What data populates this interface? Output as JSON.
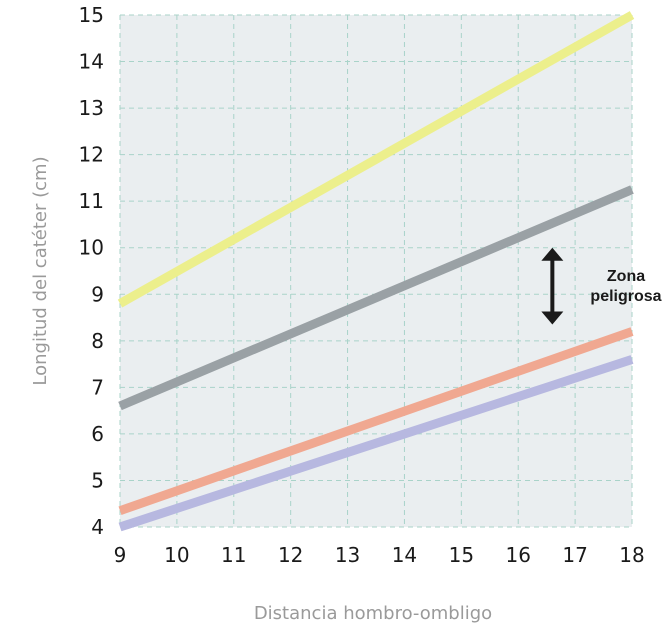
{
  "chart_data": {
    "type": "line",
    "xlabel": "Distancia hombro-ombligo",
    "ylabel": "Longitud del catéter (cm)",
    "xlim": [
      9,
      18
    ],
    "ylim": [
      4,
      15
    ],
    "xticks": [
      "9",
      "10",
      "11",
      "12",
      "13",
      "14",
      "15",
      "16",
      "17",
      "18"
    ],
    "yticks": [
      "4",
      "5",
      "6",
      "7",
      "8",
      "9",
      "10",
      "11",
      "12",
      "13",
      "14",
      "15"
    ],
    "grid": true,
    "series": [
      {
        "color": "#ecef8c",
        "x": [
          9,
          18
        ],
        "y": [
          8.8,
          15.0
        ]
      },
      {
        "color": "#9aa1a5",
        "x": [
          9,
          18
        ],
        "y": [
          6.6,
          11.25
        ]
      },
      {
        "color": "#f0a891",
        "x": [
          9,
          18
        ],
        "y": [
          4.35,
          8.2
        ]
      },
      {
        "color": "#b7b8e0",
        "x": [
          9,
          18
        ],
        "y": [
          4.0,
          7.6
        ]
      }
    ],
    "annotation": {
      "lines": [
        "Zona",
        "peligrosa"
      ],
      "y_range": [
        8.35,
        10.0
      ],
      "x": 16.6
    }
  }
}
